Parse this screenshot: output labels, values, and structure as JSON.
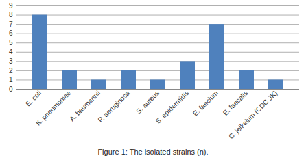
{
  "chart_data": {
    "type": "bar",
    "title": "Figure 1: The isolated strains (n).",
    "categories": [
      "E. coli",
      "K. pneumoniae",
      "A. baumannii",
      "P. aeruginosa",
      "S. aureus",
      "S. epidermidis",
      "E. faecium",
      "E. faecalis",
      "C. jeikeium (CDC JK)"
    ],
    "values": [
      8,
      2,
      1,
      2,
      1,
      3,
      7,
      2,
      1
    ],
    "color": "#4f81bd",
    "ylim": [
      0,
      9
    ],
    "yticks": [
      0,
      1,
      2,
      3,
      4,
      5,
      6,
      7,
      8,
      9
    ],
    "grid": true
  }
}
